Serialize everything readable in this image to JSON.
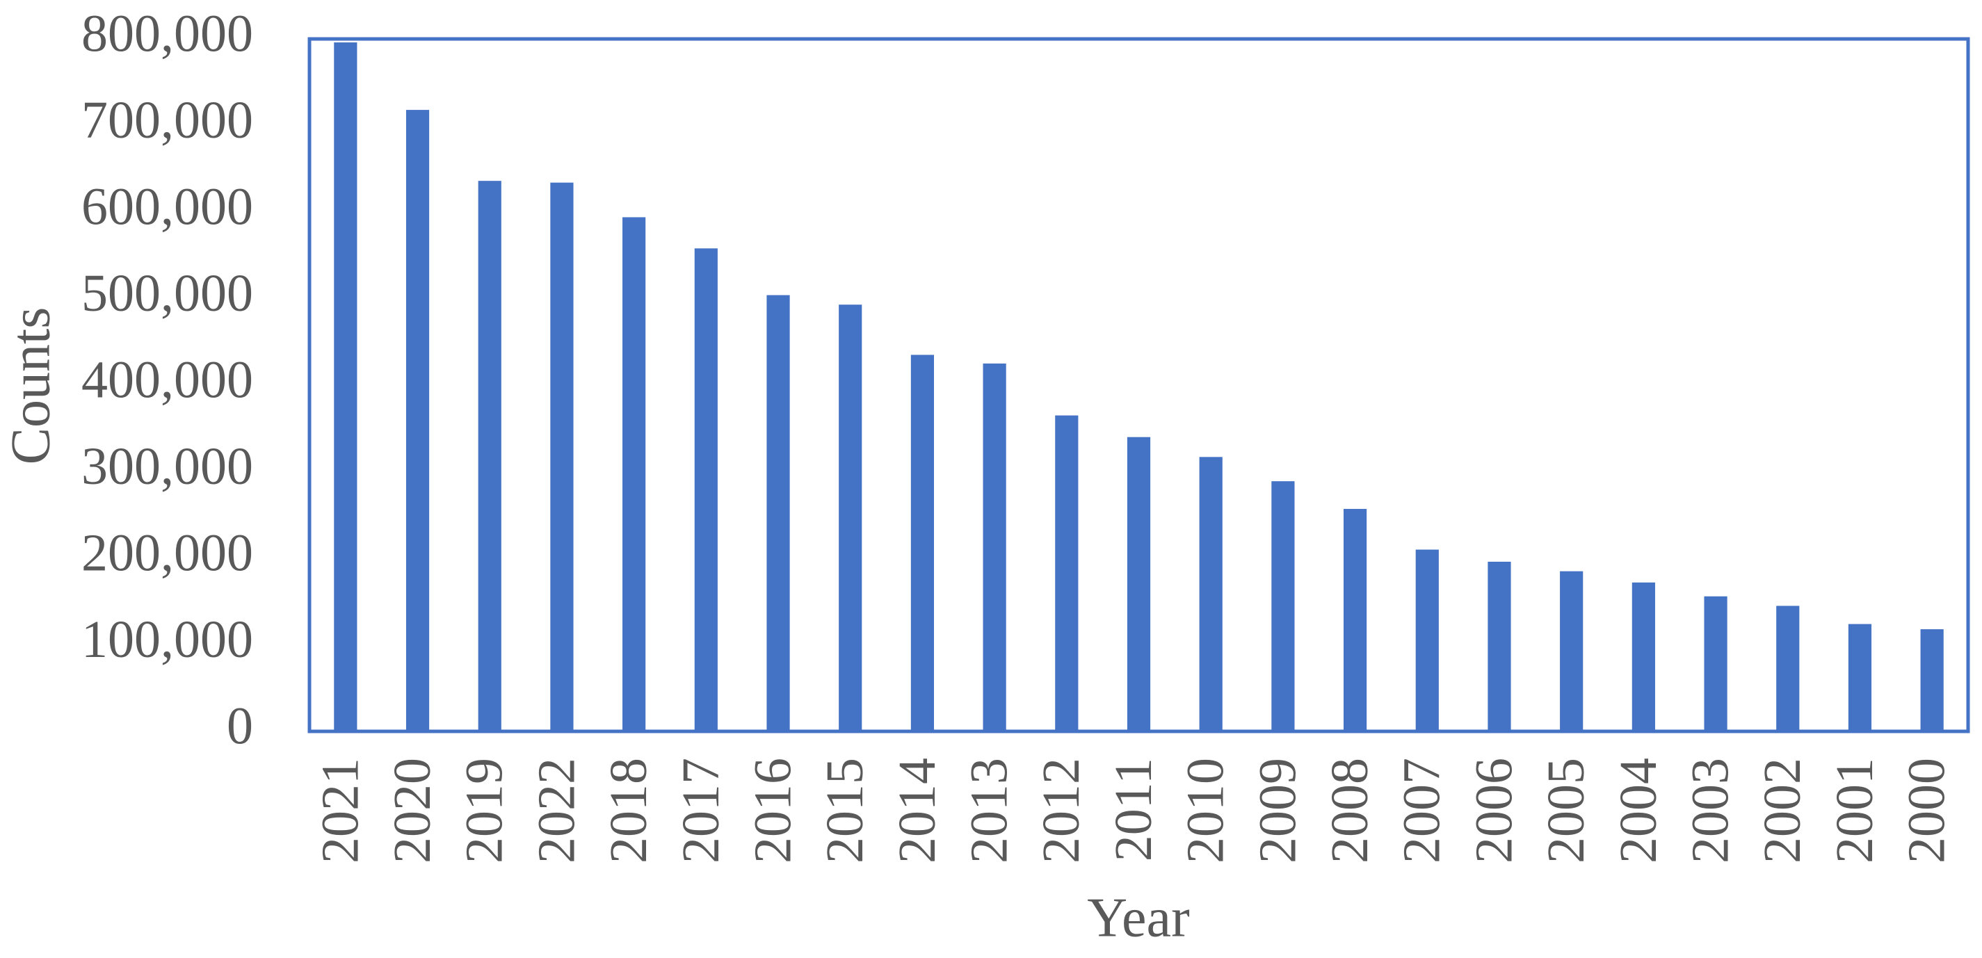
{
  "chart_data": {
    "type": "bar",
    "x_label": "Year",
    "y_label": "Counts",
    "categories": [
      "2021",
      "2020",
      "2019",
      "2022",
      "2018",
      "2017",
      "2016",
      "2015",
      "2014",
      "2013",
      "2012",
      "2011",
      "2010",
      "2009",
      "2008",
      "2007",
      "2006",
      "2005",
      "2004",
      "2003",
      "2002",
      "2001",
      "2000"
    ],
    "values": [
      796000,
      718000,
      636000,
      634000,
      594000,
      558000,
      504000,
      493000,
      435000,
      425000,
      365000,
      340000,
      317000,
      289000,
      257000,
      210000,
      196000,
      185000,
      172000,
      156000,
      145000,
      124000,
      118000
    ],
    "color": "#4472c4",
    "ylim": [
      0,
      800000
    ],
    "yticks": [
      0,
      {
        "value": 100000,
        "label": "100,000"
      },
      {
        "value": 200000,
        "label": "200,000"
      },
      {
        "value": 300000,
        "label": "300,000"
      },
      {
        "value": 400000,
        "label": "400,000"
      },
      {
        "value": 500000,
        "label": "500,000"
      },
      {
        "value": 600000,
        "label": "600,000"
      },
      {
        "value": 700000,
        "label": "700,000"
      },
      {
        "value": 800000,
        "label": "800,000"
      }
    ],
    "grid": false
  }
}
